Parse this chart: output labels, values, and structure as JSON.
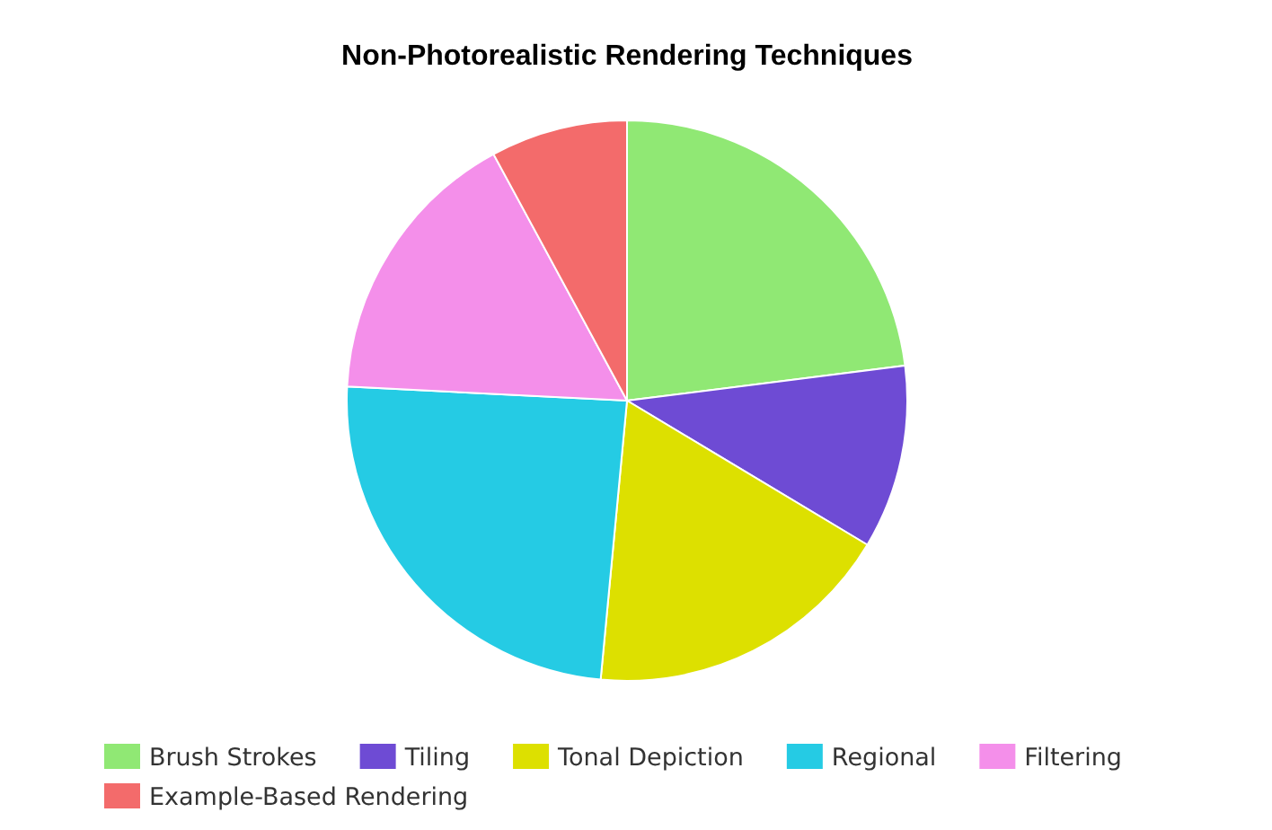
{
  "chart_data": {
    "type": "pie",
    "title": "Non-Photorealistic Rendering Techniques",
    "categories": [
      "Brush Strokes",
      "Tiling",
      "Tonal Depiction",
      "Regional",
      "Filtering",
      "Example-Based Rendering"
    ],
    "values": [
      23,
      10.6,
      17.9,
      24.3,
      16.3,
      7.9
    ],
    "colors": [
      "#90e874",
      "#6e4bd4",
      "#dde000",
      "#25cbe4",
      "#f48fea",
      "#f36b6b"
    ],
    "legend": "bottom"
  }
}
